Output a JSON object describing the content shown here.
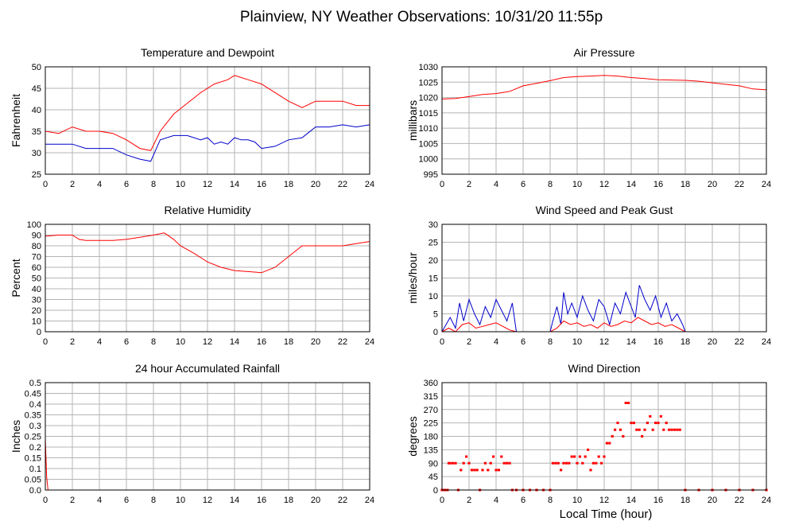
{
  "page": {
    "title": "Plainview, NY Weather Observations: 10/31/20 11:55p",
    "xlabel": "Local Time (hour)"
  },
  "colors": {
    "red": "#ff0000",
    "blue": "#0000cc",
    "grid": "#b4b4b4",
    "frame": "#000000"
  },
  "chart_data": [
    {
      "id": "temp",
      "type": "line",
      "title": "Temperature and Dewpoint",
      "ylabel": "Fahrenheit",
      "xlim": [
        0,
        24
      ],
      "ylim": [
        25,
        50
      ],
      "xticks": [
        0,
        2,
        4,
        6,
        8,
        10,
        12,
        14,
        16,
        18,
        20,
        22,
        24
      ],
      "yticks": [
        25,
        30,
        35,
        40,
        45,
        50
      ],
      "series": [
        {
          "color": "red",
          "x": [
            0,
            1,
            2,
            3,
            4,
            5,
            6,
            7,
            7.8,
            8.5,
            9.5,
            10.5,
            11.5,
            12.5,
            13.5,
            14,
            14.5,
            15,
            16,
            17,
            18,
            19,
            20,
            21,
            22,
            23,
            24
          ],
          "values": [
            35,
            34.5,
            36,
            35,
            35,
            34.5,
            33,
            31,
            30.5,
            35,
            39,
            41.5,
            44,
            46,
            47,
            48,
            47.5,
            47,
            46,
            44,
            42,
            40.5,
            42,
            42,
            42,
            41,
            41
          ]
        },
        {
          "color": "blue",
          "x": [
            0,
            1,
            2,
            3,
            4,
            5,
            6,
            7,
            7.8,
            8.5,
            9.5,
            10.5,
            11.5,
            12,
            12.5,
            13,
            13.5,
            14,
            14.5,
            15,
            15.5,
            16,
            17,
            18,
            19,
            20,
            21,
            22,
            23,
            24
          ],
          "values": [
            32,
            32,
            32,
            31,
            31,
            31,
            29.5,
            28.5,
            28,
            33,
            34,
            34,
            33,
            33.5,
            32,
            32.5,
            32,
            33.5,
            33,
            33,
            32.5,
            31,
            31.5,
            33,
            33.5,
            36,
            36,
            36.5,
            36,
            36.5
          ]
        }
      ]
    },
    {
      "id": "pressure",
      "type": "line",
      "title": "Air Pressure",
      "ylabel": "millibars",
      "xlim": [
        0,
        24
      ],
      "ylim": [
        995,
        1030
      ],
      "xticks": [
        0,
        2,
        4,
        6,
        8,
        10,
        12,
        14,
        16,
        18,
        20,
        22,
        24
      ],
      "yticks": [
        995,
        1000,
        1005,
        1010,
        1015,
        1020,
        1025,
        1030
      ],
      "series": [
        {
          "color": "red",
          "x": [
            0,
            1,
            2,
            3,
            4,
            5,
            6,
            7,
            8,
            9,
            10,
            11,
            12,
            13,
            14,
            15,
            16,
            17,
            18,
            19,
            20,
            21,
            22,
            23,
            24
          ],
          "values": [
            1019.5,
            1019.7,
            1020.3,
            1021,
            1021.3,
            1022,
            1023.8,
            1024.6,
            1025.5,
            1026.5,
            1026.8,
            1027,
            1027.2,
            1027,
            1026.5,
            1026.2,
            1025.8,
            1025.7,
            1025.6,
            1025.3,
            1024.8,
            1024.3,
            1023.8,
            1022.8,
            1022.5
          ]
        }
      ]
    },
    {
      "id": "humidity",
      "type": "line",
      "title": "Relative Humidity",
      "ylabel": "Percent",
      "xlim": [
        0,
        24
      ],
      "ylim": [
        0,
        100
      ],
      "xticks": [
        0,
        2,
        4,
        6,
        8,
        10,
        12,
        14,
        16,
        18,
        20,
        22,
        24
      ],
      "yticks": [
        0,
        10,
        20,
        30,
        40,
        50,
        60,
        70,
        80,
        90,
        100
      ],
      "series": [
        {
          "color": "red",
          "x": [
            0,
            1,
            2,
            2.5,
            3,
            4,
            5,
            6,
            7,
            8,
            8.8,
            9.5,
            10,
            11,
            12,
            13,
            14,
            15,
            16,
            17,
            18,
            19,
            20,
            21,
            22,
            23,
            24
          ],
          "values": [
            89,
            90,
            90,
            86,
            85,
            85,
            85,
            86,
            88,
            90,
            92,
            86,
            80,
            73,
            65,
            60,
            57,
            56,
            55,
            60,
            70,
            80,
            80,
            80,
            80,
            82,
            84
          ]
        }
      ]
    },
    {
      "id": "wind",
      "type": "line",
      "title": "Wind Speed and Peak Gust",
      "ylabel": "miles/hour",
      "xlim": [
        0,
        24
      ],
      "ylim": [
        0,
        30
      ],
      "xticks": [
        0,
        2,
        4,
        6,
        8,
        10,
        12,
        14,
        16,
        18,
        20,
        22,
        24
      ],
      "yticks": [
        0,
        5,
        10,
        15,
        20,
        25,
        30
      ],
      "series": [
        {
          "color": "blue",
          "x": [
            0,
            0.3,
            0.6,
            1,
            1.3,
            1.6,
            2,
            2.4,
            2.8,
            3.2,
            3.6,
            4,
            4.4,
            4.8,
            5.2,
            5.5,
            8,
            8.2,
            8.5,
            8.8,
            9,
            9.3,
            9.6,
            10,
            10.4,
            10.8,
            11.2,
            11.6,
            12,
            12.4,
            12.8,
            13.2,
            13.6,
            14,
            14.3,
            14.6,
            15,
            15.4,
            15.8,
            16.2,
            16.6,
            17,
            17.4,
            17.8,
            18,
            20,
            22,
            24
          ],
          "values": [
            0,
            2,
            4,
            1,
            8,
            3,
            9,
            5,
            2,
            7,
            4,
            9,
            6,
            3,
            8,
            0,
            0,
            3,
            7,
            2,
            11,
            5,
            8,
            4,
            10,
            6,
            3,
            9,
            7,
            2,
            8,
            5,
            11,
            7,
            4,
            13,
            9,
            6,
            10,
            4,
            8,
            3,
            5,
            2,
            0,
            0,
            0,
            0
          ]
        },
        {
          "color": "red",
          "x": [
            0,
            0.5,
            1,
            1.5,
            2,
            2.5,
            3,
            3.5,
            4,
            4.5,
            5,
            5.5,
            8,
            8.5,
            9,
            9.5,
            10,
            10.5,
            11,
            11.5,
            12,
            12.5,
            13,
            13.5,
            14,
            14.5,
            15,
            15.5,
            16,
            16.5,
            17,
            17.5,
            18,
            20,
            22,
            24
          ],
          "values": [
            0,
            1,
            0,
            2,
            2.5,
            1,
            1.5,
            2,
            2.5,
            1.5,
            0.5,
            0,
            0,
            1,
            3,
            2,
            2.5,
            1.5,
            2,
            1,
            2.5,
            1.5,
            2,
            3,
            2.5,
            4,
            3,
            2,
            2.5,
            1.5,
            2,
            1,
            0,
            0,
            0,
            0
          ]
        }
      ]
    },
    {
      "id": "rain",
      "type": "line",
      "title": "24 hour Accumulated Rainfall",
      "ylabel": "Inches",
      "xlim": [
        0,
        24
      ],
      "ylim": [
        0,
        0.5
      ],
      "xticks": [
        0,
        2,
        4,
        6,
        8,
        10,
        12,
        14,
        16,
        18,
        20,
        22,
        24
      ],
      "yticks": [
        0,
        0.05,
        0.1,
        0.15,
        0.2,
        0.25,
        0.3,
        0.35,
        0.4,
        0.45,
        0.5
      ],
      "ytick_labels": [
        "0.0",
        "0.05",
        "0.1",
        "0.15",
        "0.2",
        "0.25",
        "0.3",
        "0.35",
        "0.4",
        "0.45",
        "0.5"
      ],
      "series": [
        {
          "color": "red",
          "x": [
            0,
            0.1,
            0.2,
            24
          ],
          "values": [
            0.24,
            0.06,
            0,
            0
          ]
        }
      ]
    },
    {
      "id": "direction",
      "type": "scatter",
      "title": "Wind Direction",
      "ylabel": "degrees",
      "xlim": [
        0,
        24
      ],
      "ylim": [
        0,
        360
      ],
      "xticks": [
        0,
        2,
        4,
        6,
        8,
        10,
        12,
        14,
        16,
        18,
        20,
        22,
        24
      ],
      "yticks": [
        0,
        45,
        90,
        135,
        180,
        225,
        270,
        315,
        360
      ],
      "series": [
        {
          "color": "red",
          "x": [
            0,
            0.2,
            0.4,
            0.5,
            0.6,
            0.8,
            1,
            1.2,
            1.4,
            1.6,
            1.8,
            2,
            2.2,
            2.4,
            2.6,
            2.8,
            3,
            3.2,
            3.4,
            3.6,
            3.8,
            4,
            4.2,
            4.4,
            4.6,
            4.8,
            5,
            5.2,
            5.5,
            6,
            6.5,
            7,
            7.5,
            8,
            8.2,
            8.4,
            8.6,
            8.8,
            9,
            9.2,
            9.4,
            9.6,
            9.8,
            10,
            10.2,
            10.4,
            10.6,
            10.8,
            11,
            11.2,
            11.4,
            11.6,
            11.8,
            12,
            12.2,
            12.4,
            12.6,
            12.8,
            13,
            13.2,
            13.4,
            13.6,
            13.8,
            14,
            14.2,
            14.4,
            14.6,
            14.8,
            15,
            15.2,
            15.4,
            15.6,
            15.8,
            16,
            16.2,
            16.4,
            16.6,
            16.8,
            17,
            17.2,
            17.4,
            17.6,
            18,
            19,
            20,
            21,
            22,
            23,
            24
          ],
          "values": [
            0,
            0,
            0,
            90,
            90,
            90,
            90,
            0,
            67,
            90,
            112,
            90,
            67,
            67,
            67,
            0,
            67,
            90,
            67,
            90,
            112,
            67,
            67,
            112,
            90,
            90,
            90,
            0,
            0,
            0,
            0,
            0,
            0,
            0,
            90,
            90,
            90,
            67,
            90,
            90,
            90,
            112,
            112,
            90,
            112,
            90,
            112,
            135,
            67,
            90,
            90,
            112,
            90,
            112,
            157,
            157,
            180,
            202,
            225,
            202,
            180,
            292,
            292,
            225,
            225,
            202,
            202,
            180,
            202,
            225,
            247,
            202,
            225,
            225,
            247,
            202,
            225,
            202,
            202,
            202,
            202,
            202,
            0,
            0,
            0,
            0,
            0,
            0,
            0
          ]
        }
      ]
    }
  ]
}
